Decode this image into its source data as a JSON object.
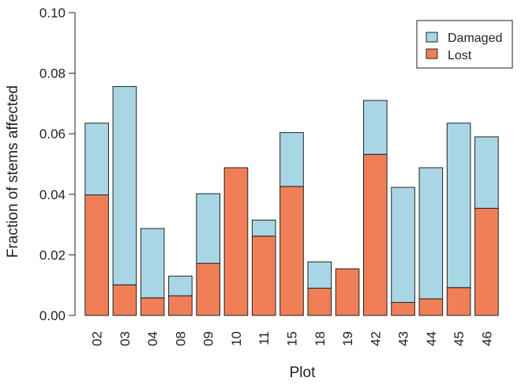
{
  "chart_data": {
    "type": "bar",
    "stacked": true,
    "xlabel": "Plot",
    "ylabel": "Fraction of stems affected",
    "ylim": [
      0,
      0.1
    ],
    "yticks": [
      "0.00",
      "0.02",
      "0.04",
      "0.06",
      "0.08",
      "0.10"
    ],
    "categories": [
      "02",
      "03",
      "04",
      "08",
      "09",
      "10",
      "11",
      "15",
      "18",
      "19",
      "42",
      "43",
      "44",
      "45",
      "46"
    ],
    "series": [
      {
        "name": "Lost",
        "color": "#f07f57",
        "values": [
          0.0398,
          0.0101,
          0.0058,
          0.0065,
          0.0172,
          0.0488,
          0.0262,
          0.0426,
          0.009,
          0.0154,
          0.0532,
          0.0043,
          0.0055,
          0.0092,
          0.0354
        ]
      },
      {
        "name": "Damaged",
        "color": "#a9d6e5",
        "values": [
          0.0237,
          0.0655,
          0.0229,
          0.0065,
          0.023,
          0.0,
          0.0053,
          0.0178,
          0.0087,
          0.0,
          0.0178,
          0.038,
          0.0433,
          0.0543,
          0.0236
        ]
      }
    ],
    "legend": {
      "position": "top-right",
      "entries": [
        {
          "label": "Damaged",
          "color": "#a9d6e5"
        },
        {
          "label": "Lost",
          "color": "#f07f57"
        }
      ]
    },
    "grid": false
  }
}
